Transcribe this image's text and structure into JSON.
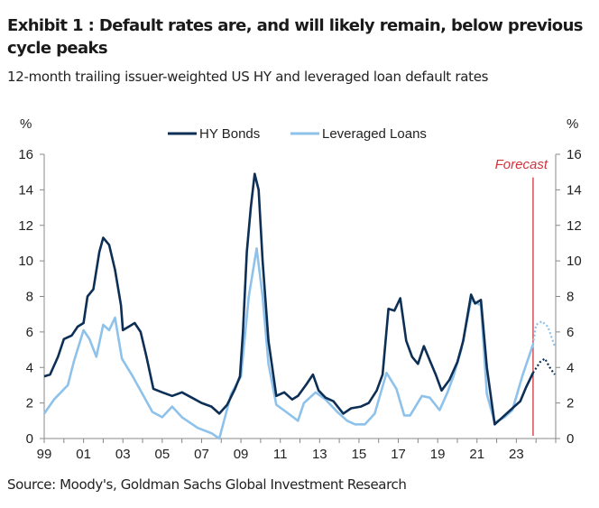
{
  "chart_data": {
    "type": "line",
    "title": "Exhibit 1 : Default rates are, and will likely remain, below previous cycle peaks",
    "subtitle": "12-month trailing issuer-weighted US HY and leveraged loan default rates",
    "ylabel_left": "%",
    "ylabel_right": "%",
    "ylim": [
      0,
      16
    ],
    "yticks": [
      "0",
      "2",
      "4",
      "6",
      "8",
      "10",
      "12",
      "14",
      "16"
    ],
    "xlim": [
      1999,
      2025
    ],
    "xticks": [
      {
        "v": 1999,
        "l": "99"
      },
      {
        "v": 2001,
        "l": "01"
      },
      {
        "v": 2003,
        "l": "03"
      },
      {
        "v": 2005,
        "l": "05"
      },
      {
        "v": 2007,
        "l": "07"
      },
      {
        "v": 2009,
        "l": "09"
      },
      {
        "v": 2011,
        "l": "11"
      },
      {
        "v": 2013,
        "l": "13"
      },
      {
        "v": 2015,
        "l": "15"
      },
      {
        "v": 2017,
        "l": "17"
      },
      {
        "v": 2019,
        "l": "19"
      },
      {
        "v": 2021,
        "l": "21"
      },
      {
        "v": 2023,
        "l": "23"
      }
    ],
    "forecast": {
      "label": "Forecast",
      "x": 2023.85,
      "color": "#d0343a"
    },
    "legend_position": "top-center",
    "series": [
      {
        "name": "HY Bonds",
        "color": "#0d2f56",
        "x": [
          1999.0,
          1999.3,
          1999.7,
          2000.0,
          2000.4,
          2000.7,
          2001.0,
          2001.2,
          2001.5,
          2001.8,
          2002.0,
          2002.3,
          2002.6,
          2002.9,
          2003.0,
          2003.3,
          2003.6,
          2003.9,
          2004.2,
          2004.55,
          2005.0,
          2005.5,
          2006.0,
          2006.5,
          2007.0,
          2007.5,
          2007.9,
          2008.3,
          2008.7,
          2008.95,
          2009.1,
          2009.3,
          2009.5,
          2009.7,
          2009.9,
          2010.1,
          2010.4,
          2010.8,
          2011.2,
          2011.6,
          2011.9,
          2012.3,
          2012.66,
          2012.95,
          2013.3,
          2013.7,
          2014.2,
          2014.6,
          2015.1,
          2015.5,
          2015.9,
          2016.2,
          2016.5,
          2016.8,
          2017.1,
          2017.4,
          2017.7,
          2018.0,
          2018.3,
          2018.6,
          2018.9,
          2019.2,
          2019.6,
          2020.0,
          2020.3,
          2020.7,
          2020.9,
          2021.2,
          2021.5,
          2021.9,
          2022.3,
          2022.8,
          2023.2,
          2023.5,
          2023.85
        ],
        "y": [
          3.5,
          3.6,
          4.6,
          5.6,
          5.8,
          6.3,
          6.5,
          8.0,
          8.4,
          10.5,
          11.3,
          10.9,
          9.5,
          7.5,
          6.1,
          6.3,
          6.5,
          6.0,
          4.6,
          2.8,
          2.6,
          2.4,
          2.6,
          2.3,
          2.0,
          1.8,
          1.4,
          1.9,
          2.8,
          3.5,
          6.0,
          10.5,
          13.0,
          14.9,
          14.0,
          10.0,
          5.5,
          2.4,
          2.6,
          2.2,
          2.4,
          3.0,
          3.6,
          2.7,
          2.3,
          2.1,
          1.4,
          1.7,
          1.8,
          2.0,
          2.7,
          3.6,
          7.3,
          7.2,
          7.9,
          5.5,
          4.6,
          4.2,
          5.2,
          4.4,
          3.6,
          2.7,
          3.3,
          4.3,
          5.5,
          8.1,
          7.6,
          7.8,
          4.0,
          0.8,
          1.2,
          1.7,
          2.1,
          2.9,
          3.7
        ]
      },
      {
        "name": "Leveraged Loans",
        "color": "#8ec2ea",
        "x": [
          1999.0,
          1999.5,
          2000.2,
          2000.5,
          2001.0,
          2001.3,
          2001.65,
          2002.0,
          2002.3,
          2002.6,
          2002.95,
          2003.5,
          2004.0,
          2004.5,
          2005.0,
          2005.5,
          2006.0,
          2006.8,
          2007.5,
          2007.9,
          2008.5,
          2009.0,
          2009.4,
          2009.8,
          2010.1,
          2010.4,
          2010.8,
          2011.3,
          2011.9,
          2012.2,
          2012.8,
          2013.3,
          2013.9,
          2014.4,
          2014.8,
          2015.3,
          2015.8,
          2016.4,
          2016.9,
          2017.3,
          2017.6,
          2018.2,
          2018.6,
          2019.1,
          2019.5,
          2019.8,
          2020.2,
          2020.7,
          2021.2,
          2021.5,
          2021.9,
          2022.4,
          2022.8,
          2023.3,
          2023.85
        ],
        "y": [
          1.4,
          2.2,
          3.0,
          4.3,
          6.1,
          5.6,
          4.6,
          6.4,
          6.1,
          6.8,
          4.5,
          3.5,
          2.5,
          1.5,
          1.2,
          1.8,
          1.2,
          0.6,
          0.3,
          0.0,
          2.5,
          3.5,
          8.0,
          10.7,
          8.0,
          4.2,
          1.9,
          1.5,
          1.0,
          2.0,
          2.6,
          2.2,
          1.5,
          1.0,
          0.8,
          0.8,
          1.4,
          3.7,
          2.8,
          1.3,
          1.3,
          2.4,
          2.3,
          1.6,
          2.6,
          3.5,
          5.0,
          7.8,
          7.5,
          2.5,
          0.9,
          1.2,
          1.6,
          3.5,
          5.3
        ]
      },
      {
        "name": "HY Bonds forecast",
        "color": "#0d2f56",
        "dotted": true,
        "x": [
          2023.85,
          2024.2,
          2024.45,
          2024.7,
          2024.95
        ],
        "y": [
          3.7,
          4.3,
          4.5,
          4.0,
          3.6
        ]
      },
      {
        "name": "Leveraged Loans forecast",
        "color": "#8ec2ea",
        "dotted": true,
        "x": [
          2023.85,
          2024.0,
          2024.3,
          2024.6,
          2024.95
        ],
        "y": [
          5.3,
          6.4,
          6.6,
          6.3,
          5.2
        ]
      }
    ]
  },
  "source": "Source: Moody's, Goldman Sachs Global Investment Research"
}
